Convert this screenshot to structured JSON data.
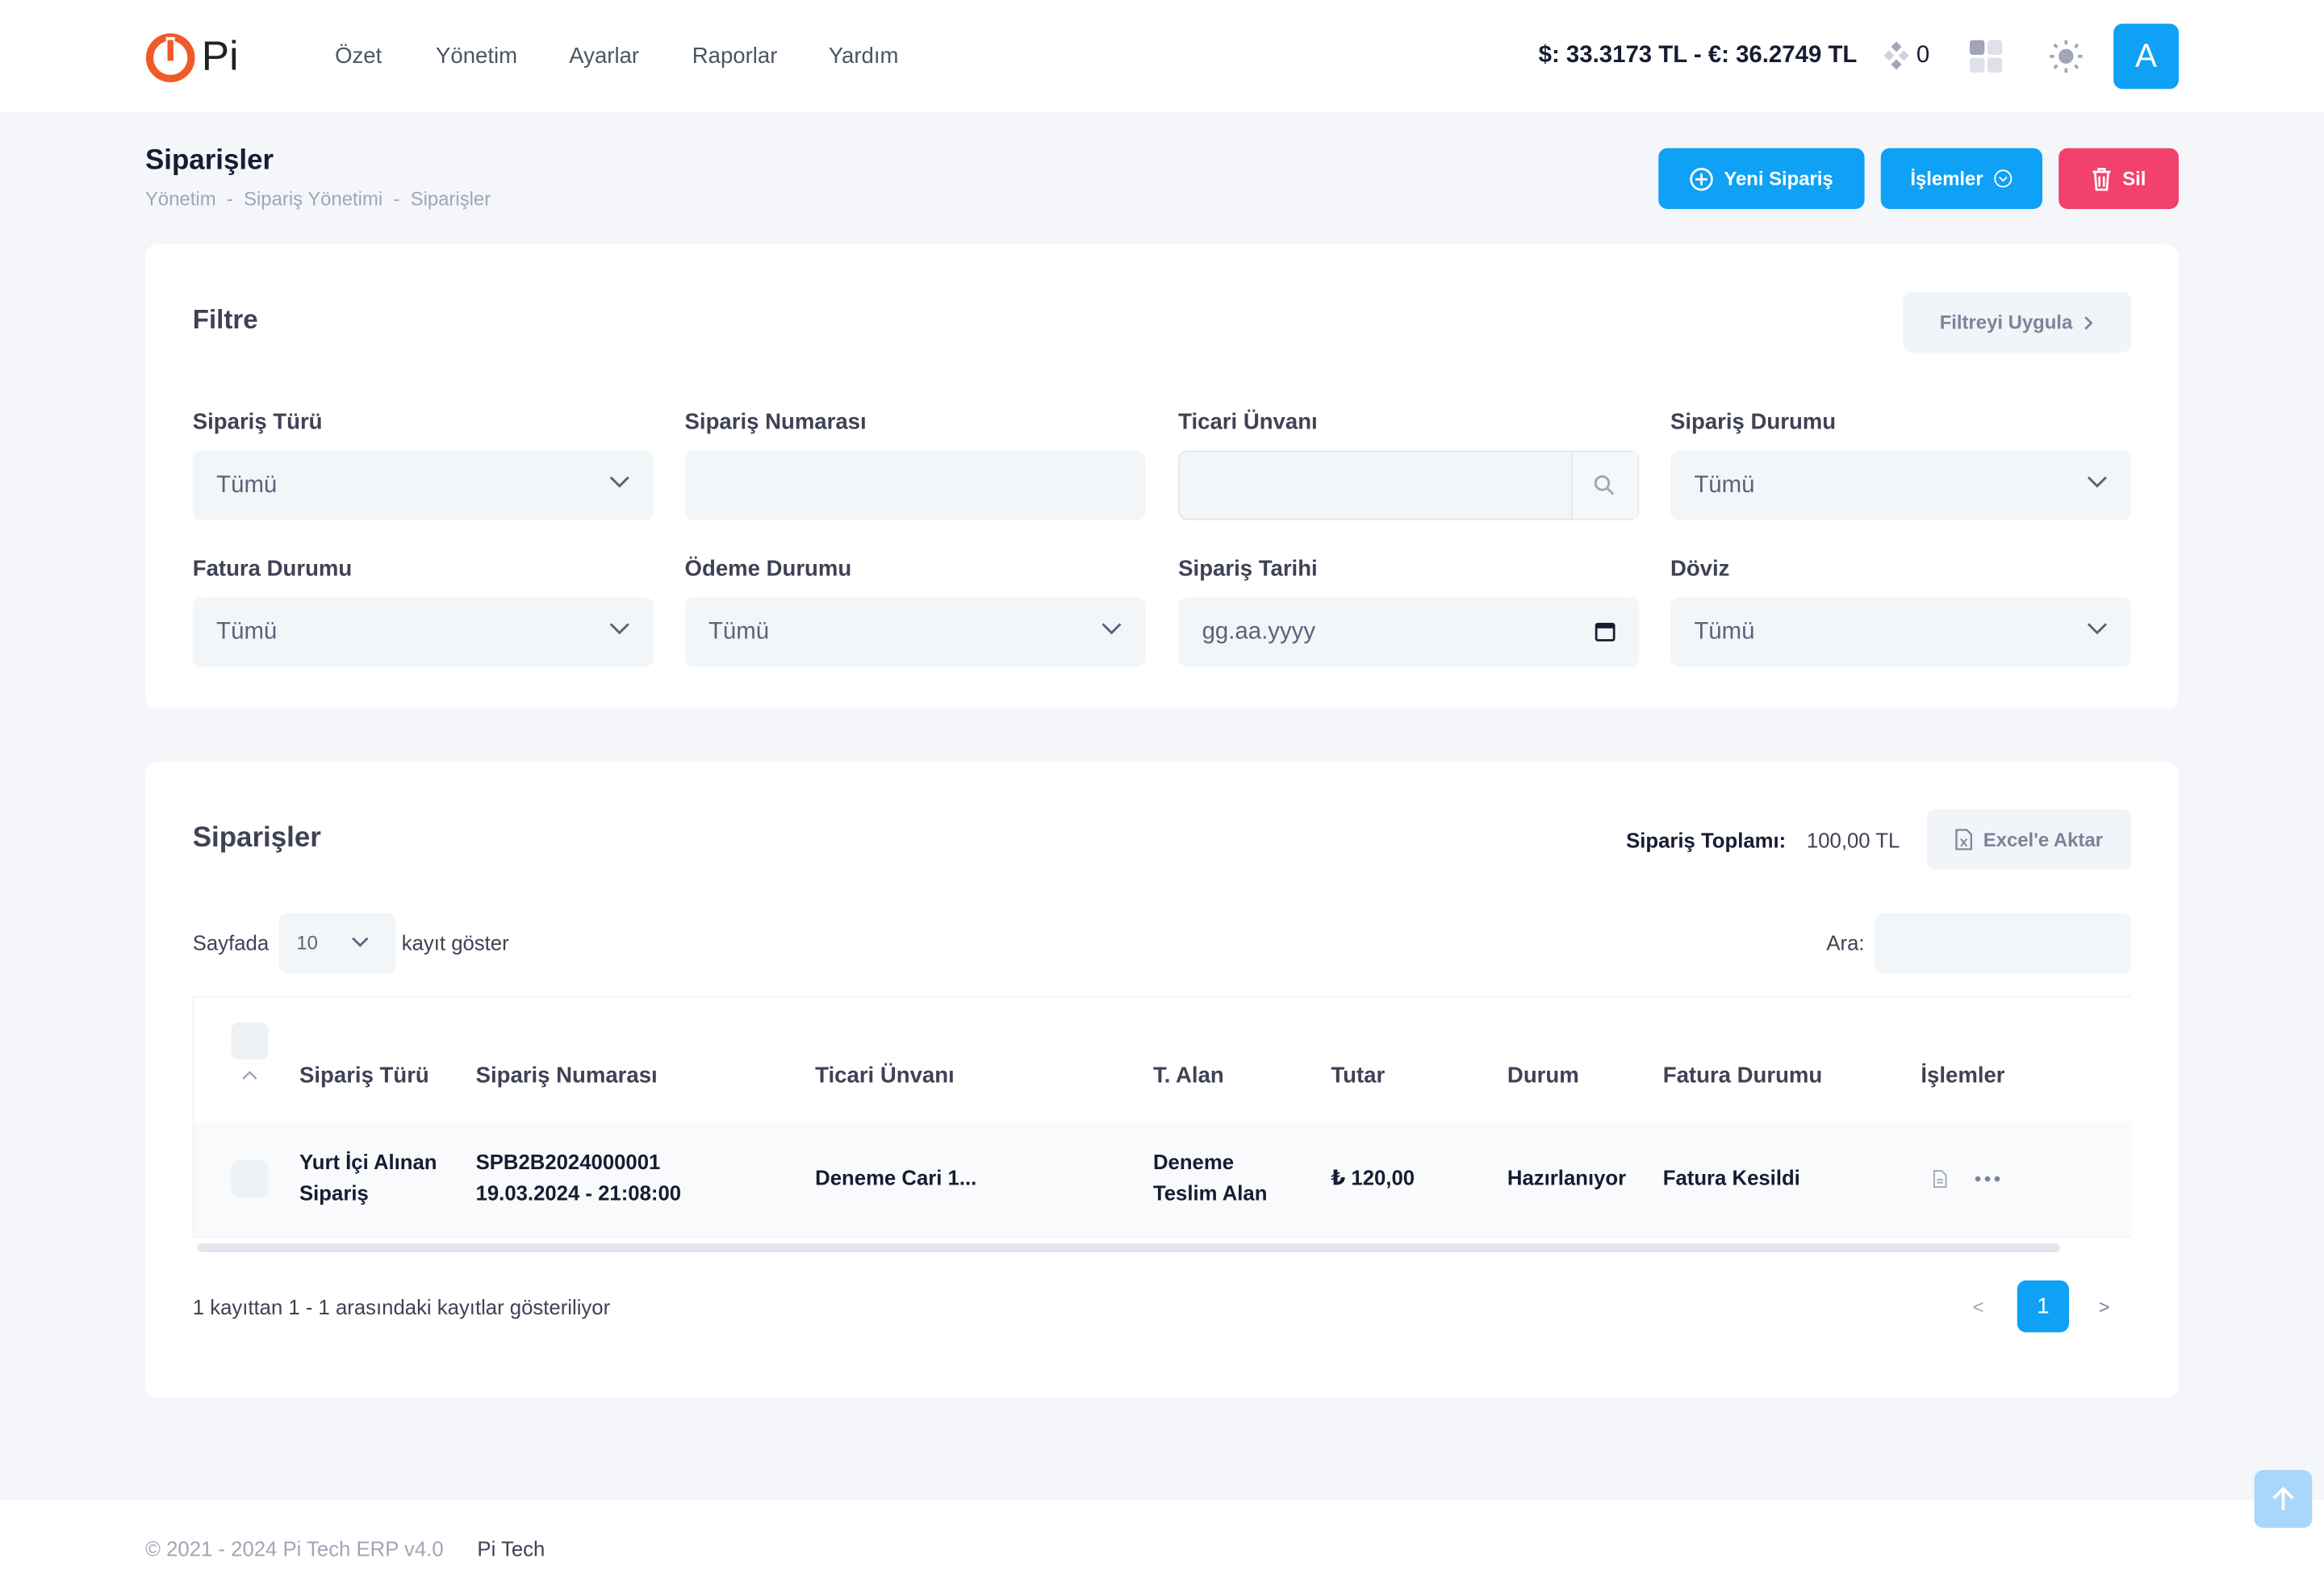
{
  "header": {
    "logo": "Pi",
    "nav": [
      "Özet",
      "Yönetim",
      "Ayarlar",
      "Raporlar",
      "Yardım"
    ],
    "rates": "$: 33.3173 TL - €: 36.2749 TL",
    "notifications": "0",
    "avatar": "A"
  },
  "page": {
    "title": "Siparişler",
    "breadcrumb": "Yönetim  -  Sipariş Yönetimi  -  Siparişler",
    "buttons": {
      "new": "Yeni Sipariş",
      "actions": "İşlemler",
      "delete": "Sil"
    }
  },
  "filter": {
    "title": "Filtre",
    "apply": "Filtreyi Uygula",
    "fields": [
      {
        "label": "Sipariş Türü",
        "value": "Tümü"
      },
      {
        "label": "Sipariş Numarası"
      },
      {
        "label": "Ticari Ünvanı"
      },
      {
        "label": "Sipariş Durumu",
        "value": "Tümü"
      },
      {
        "label": "Fatura Durumu",
        "value": "Tümü"
      },
      {
        "label": "Ödeme Durumu",
        "value": "Tümü"
      },
      {
        "label": "Sipariş Tarihi",
        "value": "gg.aa.yyyy"
      },
      {
        "label": "Döviz",
        "value": "Tümü"
      }
    ]
  },
  "orders": {
    "title": "Siparişler",
    "total_label": "Sipariş Toplamı:",
    "total": "100,00 TL",
    "export": "Excel'e Aktar",
    "length_before": "Sayfada",
    "length": "10",
    "length_after": "kayıt göster",
    "search": "Ara:",
    "table": {
      "headers": [
        "Sipariş Türü",
        "Sipariş Numarası",
        "Ticari Ünvanı",
        "T. Alan",
        "Tutar",
        "Durum",
        "Fatura Durumu",
        "İşlemler"
      ],
      "rows": [
        {
          "type": "Yurt İçi Alınan Sipariş",
          "number": "SPB2B2024000001",
          "date": "19.03.2024 - 21:08:00",
          "company": "Deneme Cari 1...",
          "receiver": "Deneme Teslim Alan",
          "amount": "₺ 120,00",
          "status": "Hazırlanıyor",
          "invoice": "Fatura Kesildi"
        }
      ]
    },
    "info": "1 kayıttan 1 - 1 arasındaki kayıtlar gösteriliyor",
    "pagination": {
      "prev": "<",
      "page": "1",
      "next": ">"
    }
  },
  "footer": {
    "copyright": "© 2021 - 2024 Pi Tech ERP v4.0",
    "company": "Pi Tech"
  }
}
